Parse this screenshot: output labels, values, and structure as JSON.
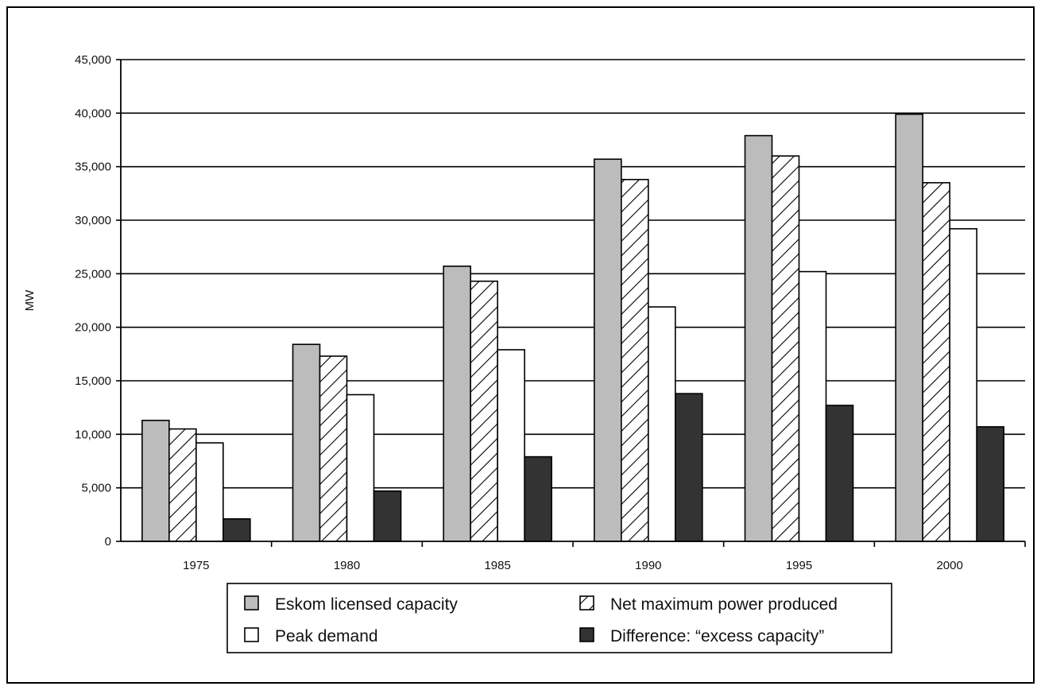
{
  "chart_data": {
    "type": "bar",
    "title": "",
    "xlabel": "",
    "ylabel": "MW",
    "ylim": [
      0,
      45000
    ],
    "ytick_step": 5000,
    "ytick_labels": [
      "0",
      "5,000",
      "10,000",
      "15,000",
      "20,000",
      "25,000",
      "30,000",
      "35,000",
      "40,000",
      "45,000"
    ],
    "grid": true,
    "legend_position": "bottom",
    "categories": [
      "1975",
      "1980",
      "1985",
      "1990",
      "1995",
      "2000"
    ],
    "series": [
      {
        "name": "Eskom licensed capacity",
        "values": [
          11300,
          18400,
          25700,
          35700,
          37900,
          39900
        ],
        "fill": "#bcbcbc",
        "pattern": "solid"
      },
      {
        "name": "Net maximum power produced",
        "values": [
          10500,
          17300,
          24300,
          33800,
          36000,
          33500
        ],
        "fill": "#ffffff",
        "pattern": "diagonal-hatch"
      },
      {
        "name": "Peak demand",
        "values": [
          9200,
          13700,
          17900,
          21900,
          25200,
          29200
        ],
        "fill": "#ffffff",
        "pattern": "solid"
      },
      {
        "name": "Difference: “excess capacity”",
        "values": [
          2100,
          4700,
          7900,
          13800,
          12700,
          10700
        ],
        "fill": "#333333",
        "pattern": "solid"
      }
    ]
  }
}
